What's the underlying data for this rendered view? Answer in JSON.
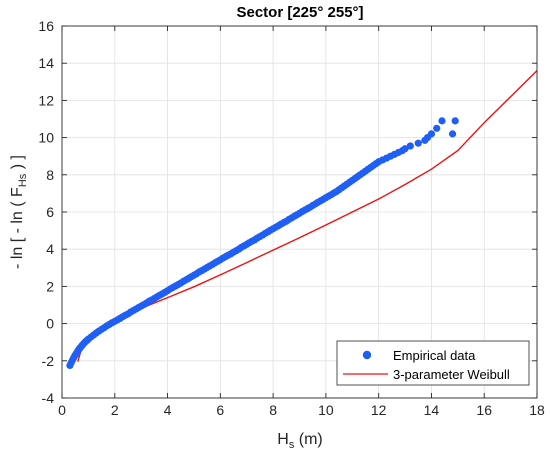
{
  "chart_data": {
    "type": "scatter",
    "title": "Sector [225° 255°]",
    "xlabel": {
      "main": "H",
      "sub": "s",
      "tail": " (m)"
    },
    "ylabel": {
      "main": "- ln [ - ln ( F",
      "sub": "Hs",
      "tail": " ) ]"
    },
    "xlim": [
      0,
      18
    ],
    "ylim": [
      -4,
      16
    ],
    "xticks": [
      0,
      2,
      4,
      6,
      8,
      10,
      12,
      14,
      16,
      18
    ],
    "yticks": [
      -4,
      -2,
      0,
      2,
      4,
      6,
      8,
      10,
      12,
      14,
      16
    ],
    "grid": true,
    "legend_position": "bottom-right",
    "colors": {
      "empirical": "#1f5ff5",
      "weibull": "#ee1111",
      "grid": "#e0e0e0",
      "axis": "#262626"
    },
    "series": [
      {
        "name": "Empirical data",
        "kind": "scatter",
        "x": [
          0.3,
          0.35,
          0.4,
          0.45,
          0.5,
          0.55,
          0.6,
          0.65,
          0.7,
          0.75,
          0.8,
          0.85,
          0.9,
          0.95,
          1.0,
          1.1,
          1.2,
          1.3,
          1.4,
          1.5,
          1.6,
          1.7,
          1.8,
          1.9,
          2.0,
          2.1,
          2.2,
          2.3,
          2.4,
          2.5,
          2.6,
          2.7,
          2.8,
          2.9,
          3.0,
          3.1,
          3.2,
          3.3,
          3.4,
          3.5,
          3.6,
          3.7,
          3.8,
          3.9,
          4.0,
          4.1,
          4.2,
          4.3,
          4.4,
          4.5,
          4.6,
          4.7,
          4.8,
          4.9,
          5.0,
          5.1,
          5.2,
          5.3,
          5.4,
          5.5,
          5.6,
          5.7,
          5.8,
          5.9,
          6.0,
          6.1,
          6.2,
          6.3,
          6.4,
          6.5,
          6.6,
          6.7,
          6.8,
          6.9,
          7.0,
          7.1,
          7.2,
          7.3,
          7.4,
          7.5,
          7.6,
          7.7,
          7.8,
          7.9,
          8.0,
          8.1,
          8.2,
          8.3,
          8.4,
          8.5,
          8.6,
          8.7,
          8.8,
          8.9,
          9.0,
          9.1,
          9.2,
          9.3,
          9.4,
          9.5,
          9.6,
          9.7,
          9.8,
          9.9,
          10.0,
          10.1,
          10.2,
          10.3,
          10.4,
          10.5,
          10.6,
          10.7,
          10.8,
          10.9,
          11.0,
          11.1,
          11.2,
          11.3,
          11.4,
          11.5,
          11.6,
          11.7,
          11.8,
          11.9,
          12.0,
          12.15,
          12.3,
          12.45,
          12.6,
          12.75,
          12.9,
          13.0,
          13.2,
          13.5,
          13.75,
          13.85,
          14.0,
          14.2,
          14.4,
          14.8,
          14.9
        ],
        "y": [
          -2.25,
          -2.1,
          -1.95,
          -1.82,
          -1.7,
          -1.58,
          -1.47,
          -1.37,
          -1.28,
          -1.19,
          -1.11,
          -1.03,
          -0.96,
          -0.9,
          -0.83,
          -0.72,
          -0.61,
          -0.5,
          -0.4,
          -0.31,
          -0.22,
          -0.12,
          -0.04,
          0.05,
          0.12,
          0.2,
          0.28,
          0.37,
          0.45,
          0.52,
          0.62,
          0.7,
          0.78,
          0.86,
          0.94,
          1.02,
          1.1,
          1.2,
          1.27,
          1.35,
          1.44,
          1.52,
          1.6,
          1.68,
          1.77,
          1.86,
          1.94,
          2.02,
          2.1,
          2.18,
          2.27,
          2.35,
          2.43,
          2.52,
          2.6,
          2.68,
          2.78,
          2.85,
          2.93,
          3.02,
          3.1,
          3.18,
          3.27,
          3.35,
          3.43,
          3.52,
          3.6,
          3.68,
          3.75,
          3.84,
          3.92,
          4.0,
          4.1,
          4.18,
          4.26,
          4.35,
          4.43,
          4.5,
          4.6,
          4.68,
          4.76,
          4.85,
          4.93,
          5.02,
          5.1,
          5.18,
          5.26,
          5.35,
          5.43,
          5.5,
          5.6,
          5.68,
          5.77,
          5.85,
          5.93,
          6.02,
          6.1,
          6.18,
          6.26,
          6.35,
          6.43,
          6.52,
          6.6,
          6.68,
          6.77,
          6.85,
          6.93,
          7.02,
          7.1,
          7.2,
          7.3,
          7.4,
          7.5,
          7.6,
          7.7,
          7.8,
          7.9,
          8.0,
          8.1,
          8.2,
          8.3,
          8.4,
          8.5,
          8.6,
          8.7,
          8.8,
          8.9,
          9.0,
          9.1,
          9.2,
          9.3,
          9.4,
          9.55,
          9.7,
          9.85,
          10.0,
          10.2,
          10.5,
          10.9,
          10.2,
          10.9
        ]
      },
      {
        "name": "3-parameter Weibull",
        "kind": "line",
        "x": [
          0.6,
          0.7,
          0.8,
          0.9,
          1.0,
          1.2,
          1.4,
          1.6,
          1.8,
          2.0,
          2.5,
          3.0,
          4.0,
          5.0,
          6.0,
          7.0,
          8.0,
          9.0,
          10.0,
          11.0,
          12.0,
          13.0,
          14.0,
          15.0,
          16.0,
          17.0,
          18.0
        ],
        "y": [
          -2.05,
          -1.55,
          -1.22,
          -0.98,
          -0.79,
          -0.5,
          -0.28,
          -0.1,
          0.06,
          0.2,
          0.52,
          0.82,
          1.4,
          1.98,
          2.62,
          3.28,
          3.95,
          4.62,
          5.3,
          6.0,
          6.7,
          7.48,
          8.3,
          9.3,
          10.8,
          12.2,
          13.6
        ]
      }
    ]
  }
}
